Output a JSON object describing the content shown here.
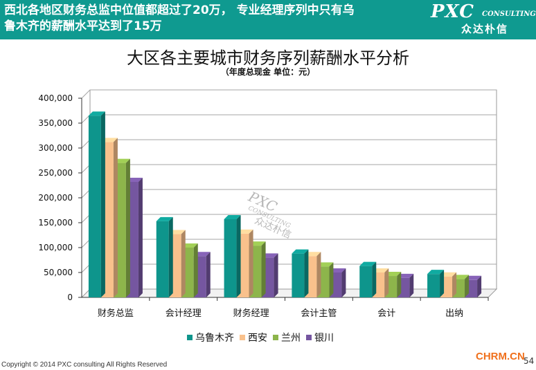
{
  "header": {
    "headline": "西北各地区财务总监中位值都超过了20万， 专业经理序列中只有乌\n鲁木齐的薪酬水平达到了15万",
    "logo_main": "PXC",
    "logo_sub": "CONSULTING",
    "logo_cn": "众达朴信",
    "background_color": "#0f9a90"
  },
  "watermark": {
    "main": "PXC",
    "sub": "CONSULTING",
    "cn": "众达朴信"
  },
  "chart_data": {
    "type": "bar",
    "title": "大区各主要城市财务序列薪酬水平分析",
    "subtitle": "（年度总现金 单位：元）",
    "categories": [
      "财务总监",
      "会计经理",
      "财务经理",
      "会计主管",
      "会计",
      "出纳"
    ],
    "series": [
      {
        "name": "乌鲁木齐",
        "color": "#0e958c",
        "values": [
          365000,
          153000,
          157000,
          88000,
          63000,
          47000
        ]
      },
      {
        "name": "西安",
        "color": "#f9c18c",
        "values": [
          312000,
          127000,
          128000,
          83000,
          50000,
          42000
        ]
      },
      {
        "name": "兰州",
        "color": "#8db54b",
        "values": [
          270000,
          100000,
          104000,
          62000,
          43000,
          37000
        ]
      },
      {
        "name": "银川",
        "color": "#7556a0",
        "values": [
          232000,
          83000,
          80000,
          50000,
          39000,
          35000
        ]
      }
    ],
    "yticks": [
      "400,000",
      "350,000",
      "300,000",
      "250,000",
      "200,000",
      "150,000",
      "100,000",
      "50,000",
      "0"
    ],
    "ylim": [
      0,
      400000
    ],
    "grid": true,
    "legend_position": "bottom"
  },
  "footer": {
    "copyright": "Copyright © 2014 PXC consulting All Rights Reserved",
    "source": "CHRM.CN",
    "page_number": "54"
  }
}
